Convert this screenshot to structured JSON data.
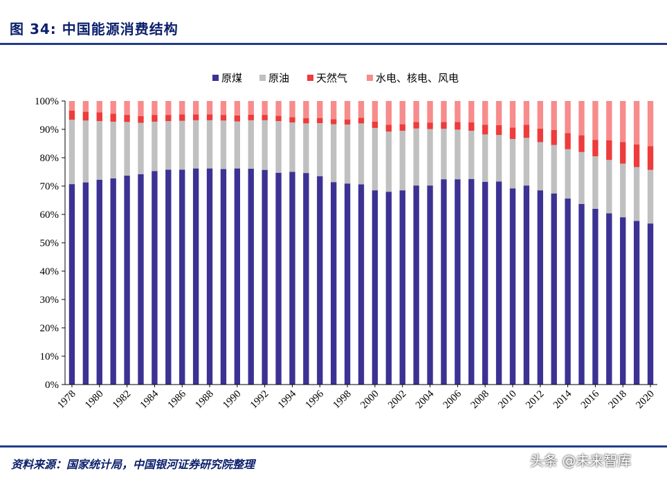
{
  "header": {
    "title": "图 34:  中国能源消费结构"
  },
  "footer": {
    "source": "资料来源：国家统计局，中国银河证券研究院整理",
    "watermark": "头条 @未来智库"
  },
  "colors": {
    "coal": "#3c3293",
    "oil": "#c0c0c0",
    "gas": "#ee3b3b",
    "hydro_nuclear_wind": "#f78c8c",
    "rule": "#1f3c88"
  },
  "chart_data": {
    "type": "bar",
    "stacked": true,
    "title": "",
    "xlabel": "",
    "ylabel": "",
    "ylim": [
      0,
      100
    ],
    "y_ticks": [
      "0%",
      "10%",
      "20%",
      "30%",
      "40%",
      "50%",
      "60%",
      "70%",
      "80%",
      "90%",
      "100%"
    ],
    "x_tick_labels": [
      "1978",
      "1980",
      "1982",
      "1984",
      "1986",
      "1988",
      "1990",
      "1992",
      "1994",
      "1996",
      "1998",
      "2000",
      "2002",
      "2004",
      "2006",
      "2008",
      "2010",
      "2012",
      "2014",
      "2016",
      "2018",
      "2020"
    ],
    "legend_position": "top-center",
    "grid": false,
    "categories": [
      "1978",
      "1979",
      "1980",
      "1981",
      "1982",
      "1983",
      "1984",
      "1985",
      "1986",
      "1987",
      "1988",
      "1989",
      "1990",
      "1991",
      "1992",
      "1993",
      "1994",
      "1995",
      "1996",
      "1997",
      "1998",
      "1999",
      "2000",
      "2001",
      "2002",
      "2003",
      "2004",
      "2005",
      "2006",
      "2007",
      "2008",
      "2009",
      "2010",
      "2011",
      "2012",
      "2013",
      "2014",
      "2015",
      "2016",
      "2017",
      "2018",
      "2019",
      "2020"
    ],
    "series": [
      {
        "name": "原煤",
        "color": "#3c3293",
        "values": [
          70.7,
          71.3,
          72.2,
          72.7,
          73.7,
          74.2,
          75.3,
          75.8,
          75.8,
          76.2,
          76.2,
          76.0,
          76.2,
          76.1,
          75.7,
          74.7,
          75.0,
          74.6,
          73.5,
          71.4,
          70.9,
          70.6,
          68.5,
          68.0,
          68.5,
          70.2,
          70.2,
          72.4,
          72.4,
          72.5,
          71.5,
          71.6,
          69.2,
          70.2,
          68.5,
          67.4,
          65.6,
          63.7,
          62.0,
          60.4,
          59.0,
          57.7,
          56.8
        ]
      },
      {
        "name": "原油",
        "color": "#c0c0c0",
        "values": [
          22.7,
          21.8,
          20.7,
          20.0,
          18.9,
          18.1,
          17.4,
          17.1,
          17.2,
          17.0,
          17.0,
          17.1,
          16.6,
          17.1,
          17.5,
          18.2,
          17.4,
          17.5,
          18.7,
          20.4,
          20.8,
          21.5,
          22.0,
          21.2,
          21.0,
          20.1,
          19.9,
          17.8,
          17.5,
          17.0,
          16.7,
          16.4,
          17.4,
          16.8,
          17.0,
          17.1,
          17.4,
          18.3,
          18.5,
          18.8,
          18.9,
          19.0,
          18.9
        ]
      },
      {
        "name": "天然气",
        "color": "#ee3b3b",
        "values": [
          3.2,
          3.1,
          3.1,
          2.8,
          2.5,
          2.4,
          2.4,
          2.2,
          2.3,
          2.1,
          2.1,
          2.0,
          2.1,
          2.0,
          1.9,
          1.9,
          1.9,
          1.8,
          1.8,
          1.8,
          1.8,
          2.0,
          2.2,
          2.4,
          2.3,
          2.3,
          2.3,
          2.4,
          2.7,
          3.0,
          3.4,
          3.5,
          4.0,
          4.6,
          4.8,
          5.3,
          5.7,
          5.9,
          5.8,
          6.9,
          7.6,
          8.0,
          8.4
        ]
      },
      {
        "name": "水电、核电、风电",
        "color": "#f78c8c",
        "values": [
          3.4,
          3.8,
          4.0,
          4.5,
          4.9,
          5.3,
          4.9,
          4.9,
          4.7,
          4.7,
          4.7,
          4.9,
          5.1,
          4.8,
          4.9,
          5.2,
          5.7,
          6.1,
          6.0,
          6.4,
          6.5,
          5.9,
          7.3,
          8.4,
          8.2,
          7.4,
          7.6,
          7.4,
          7.4,
          7.5,
          8.4,
          8.5,
          9.4,
          8.4,
          9.7,
          10.2,
          11.3,
          12.1,
          13.7,
          13.9,
          14.5,
          15.3,
          15.9
        ]
      }
    ]
  }
}
